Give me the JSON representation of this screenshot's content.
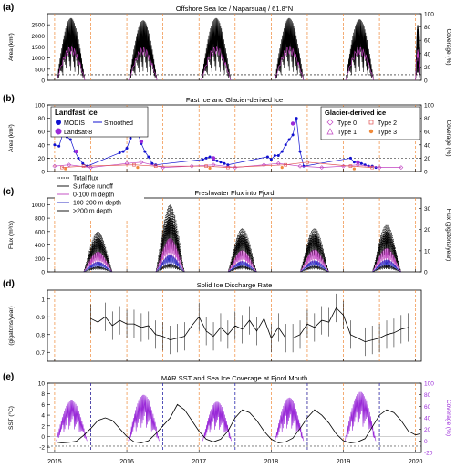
{
  "chart_data": [
    {
      "panel": "(a)",
      "title": "Offshore Sea Ice / Naparsuaq / 61.8°N",
      "type": "line",
      "ylabel": "Area (km²)",
      "y2label": "Coverage (%)",
      "ylim": [
        0,
        3000
      ],
      "y2lim": [
        0,
        100
      ],
      "yticks": [
        0,
        500,
        1000,
        1500,
        2000,
        2500
      ],
      "y2ticks": [
        0,
        20,
        40,
        60,
        80,
        100
      ],
      "reference_lines": [
        100,
        250
      ],
      "series": [
        {
          "name": "",
          "color": "#000000",
          "seasons": [
            [
              2015.03,
              2015.42,
              2800
            ],
            [
              2016.03,
              2016.42,
              2700
            ],
            [
              2017.03,
              2017.44,
              2800
            ],
            [
              2018.05,
              2018.45,
              2800
            ],
            [
              2019.03,
              2019.42,
              2750
            ],
            [
              2020.0,
              2020.06,
              2500
            ]
          ]
        }
      ]
    },
    {
      "panel": "(b)",
      "title": "Fast Ice and Glacier-derived Ice",
      "type": "scatter",
      "ylabel": "Area (km²)",
      "y2label": "Coverage (%)",
      "ylim": [
        0,
        100
      ],
      "y2lim": [
        0,
        100
      ],
      "yticks": [
        0,
        20,
        40,
        60,
        80,
        100
      ],
      "y2ticks": [
        0,
        20,
        40,
        60,
        80,
        100
      ],
      "legend_left_title": "Landfast ice",
      "legend_left": [
        "MODIS",
        "Landsat-8",
        "Smoothed"
      ],
      "legend_right_title": "Glacier-derived ice",
      "legend_right": [
        "Type 0",
        "Type 1",
        "Type 2",
        "Type 3"
      ],
      "series": [
        {
          "name": "MODIS",
          "color": "#1010d0",
          "x": [
            2015.0,
            2015.06,
            2015.11,
            2015.17,
            2015.22,
            2015.28,
            2015.33,
            2015.39,
            2015.45,
            2015.9,
            2015.95,
            2016.0,
            2016.05,
            2016.1,
            2016.15,
            2016.2,
            2016.25,
            2016.3,
            2016.35,
            2016.4,
            2017.05,
            2017.1,
            2017.15,
            2017.2,
            2017.25,
            2017.3,
            2017.35,
            2017.4,
            2017.95,
            2018.0,
            2018.05,
            2018.1,
            2018.15,
            2018.2,
            2018.25,
            2018.3,
            2018.35,
            2018.4,
            2018.45,
            2019.1,
            2019.15,
            2019.2,
            2019.25,
            2019.3,
            2019.35,
            2019.4,
            2019.45
          ],
          "values": [
            40,
            38,
            55,
            52,
            48,
            30,
            20,
            12,
            8,
            28,
            30,
            35,
            50,
            60,
            58,
            42,
            30,
            22,
            12,
            10,
            18,
            20,
            22,
            18,
            16,
            14,
            12,
            10,
            22,
            18,
            24,
            24,
            30,
            40,
            48,
            55,
            80,
            30,
            8,
            20,
            14,
            14,
            12,
            10,
            8,
            8,
            6
          ]
        },
        {
          "name": "Landsat-8",
          "color": "#9a2ad8",
          "x": [
            2015.1,
            2015.3,
            2016.05,
            2016.2,
            2017.2,
            2018.3,
            2019.2
          ],
          "values": [
            55,
            30,
            62,
            45,
            20,
            72,
            14
          ]
        },
        {
          "name": "Type 0",
          "color": "#c040c0",
          "x": [
            2015.0,
            2015.2,
            2015.5,
            2016.0,
            2016.2,
            2016.5,
            2016.9,
            2017.2,
            2017.5,
            2017.9,
            2018.1,
            2018.4,
            2018.7,
            2019.0,
            2019.2,
            2019.5,
            2019.8
          ],
          "values": [
            8,
            10,
            6,
            12,
            14,
            6,
            8,
            10,
            6,
            10,
            12,
            8,
            6,
            8,
            10,
            6,
            6
          ]
        },
        {
          "name": "Type 2",
          "color": "#e05050",
          "x": [
            2015.1,
            2015.4,
            2016.1,
            2016.4,
            2017.1,
            2017.4,
            2018.2,
            2018.5,
            2019.1,
            2019.4
          ],
          "values": [
            6,
            8,
            10,
            8,
            8,
            6,
            10,
            14,
            8,
            6
          ]
        },
        {
          "name": "Type 3",
          "color": "#f08a3a",
          "x": [
            2015.15,
            2016.15,
            2017.15,
            2018.15,
            2019.15
          ],
          "values": [
            4,
            6,
            5,
            6,
            4
          ]
        }
      ]
    },
    {
      "panel": "(c)",
      "title": "Freshwater Flux into Fjord",
      "type": "line",
      "ylabel": "Flux (m³/s)",
      "y2label": "Flux (gigatons/year)",
      "ylim": [
        0,
        1100
      ],
      "y2lim": [
        0,
        35
      ],
      "yticks": [
        0,
        200,
        400,
        600,
        800,
        1000
      ],
      "y2ticks": [
        0,
        10,
        20,
        30
      ],
      "legend": [
        "Total flux",
        "Surface runoff",
        "0-100 m depth",
        "100-200 m depth",
        ">200 m depth"
      ],
      "series": [
        {
          "name": "Total flux",
          "color": "#000000",
          "peaks": [
            600,
            1000,
            650,
            650,
            700
          ]
        },
        {
          "name": "Surface runoff",
          "color": "#000000",
          "peaks": [
            500,
            800,
            550,
            560,
            600
          ]
        },
        {
          "name": "0-100 m depth",
          "color": "#c040c0",
          "peaks": [
            300,
            500,
            320,
            330,
            350
          ]
        },
        {
          "name": "100-200 m depth",
          "color": "#2020c0",
          "peaks": [
            150,
            250,
            160,
            170,
            180
          ]
        },
        {
          "name": ">200 m depth",
          "color": "#000000",
          "peaks": [
            80,
            120,
            90,
            90,
            100
          ]
        }
      ],
      "seasons": [
        [
          2015.4,
          2015.8
        ],
        [
          2016.4,
          2016.8
        ],
        [
          2017.4,
          2017.8
        ],
        [
          2018.4,
          2018.8
        ],
        [
          2019.4,
          2019.8
        ]
      ]
    },
    {
      "panel": "(d)",
      "title": "Solid Ice Discharge Rate",
      "type": "line",
      "ylabel": "(gigatons/year)",
      "ylim": [
        0.65,
        1.05
      ],
      "yticks": [
        0.7,
        0.8,
        0.9,
        1.0
      ],
      "series": [
        {
          "name": "",
          "color": "#000000",
          "x": [
            2015.5,
            2015.6,
            2015.7,
            2015.8,
            2015.9,
            2016.0,
            2016.1,
            2016.2,
            2016.3,
            2016.4,
            2016.5,
            2016.6,
            2016.7,
            2016.8,
            2016.9,
            2017.0,
            2017.1,
            2017.2,
            2017.3,
            2017.4,
            2017.5,
            2017.6,
            2017.7,
            2017.8,
            2017.9,
            2018.0,
            2018.1,
            2018.2,
            2018.3,
            2018.4,
            2018.5,
            2018.6,
            2018.7,
            2018.8,
            2018.9,
            2019.0,
            2019.1,
            2019.2,
            2019.3,
            2019.4,
            2019.5,
            2019.6,
            2019.7,
            2019.8,
            2019.9
          ],
          "values": [
            0.89,
            0.87,
            0.9,
            0.85,
            0.88,
            0.86,
            0.86,
            0.84,
            0.85,
            0.8,
            0.79,
            0.77,
            0.78,
            0.79,
            0.85,
            0.9,
            0.82,
            0.79,
            0.84,
            0.8,
            0.85,
            0.83,
            0.88,
            0.82,
            0.89,
            0.78,
            0.84,
            0.78,
            0.78,
            0.8,
            0.86,
            0.84,
            0.88,
            0.87,
            0.95,
            0.91,
            0.8,
            0.78,
            0.76,
            0.77,
            0.78,
            0.8,
            0.81,
            0.83,
            0.84
          ],
          "error": 0.08
        }
      ]
    },
    {
      "panel": "(e)",
      "title": "MAR SST and Sea Ice Coverage at Fjord Mouth",
      "type": "line",
      "ylabel": "SST (°C)",
      "y2label": "Coverage (%)",
      "ylim": [
        -3,
        10
      ],
      "y2lim": [
        -20,
        100
      ],
      "yticks": [
        -2,
        0,
        2,
        4,
        6,
        8,
        10
      ],
      "y2ticks": [
        -20,
        0,
        20,
        40,
        60,
        80,
        100
      ],
      "series": [
        {
          "name": "",
          "color": "#000000",
          "x": [
            2015.0,
            2015.1,
            2015.2,
            2015.3,
            2015.4,
            2015.5,
            2015.6,
            2015.7,
            2015.8,
            2015.9,
            2016.0,
            2016.1,
            2016.2,
            2016.3,
            2016.4,
            2016.5,
            2016.6,
            2016.7,
            2016.8,
            2016.9,
            2017.0,
            2017.1,
            2017.2,
            2017.3,
            2017.4,
            2017.5,
            2017.6,
            2017.7,
            2017.8,
            2017.9,
            2018.0,
            2018.1,
            2018.2,
            2018.3,
            2018.4,
            2018.5,
            2018.6,
            2018.7,
            2018.8,
            2018.9,
            2019.0,
            2019.1,
            2019.2,
            2019.3,
            2019.4,
            2019.5,
            2019.6,
            2019.7,
            2019.8,
            2019.9,
            2020.0,
            2020.06
          ],
          "values": [
            -1.0,
            -1.2,
            -1.1,
            -0.9,
            0.2,
            1.5,
            3.0,
            3.5,
            3.0,
            1.5,
            0.0,
            -1.0,
            -1.2,
            -0.8,
            0.5,
            2.0,
            3.5,
            6.0,
            5.0,
            3.0,
            1.0,
            -0.5,
            -1.0,
            -0.5,
            1.0,
            3.5,
            5.0,
            4.5,
            3.0,
            1.0,
            -0.5,
            -1.2,
            -1.0,
            -0.3,
            1.5,
            3.5,
            5.0,
            4.0,
            2.5,
            0.5,
            -0.8,
            -1.2,
            -1.0,
            -0.4,
            1.8,
            4.0,
            5.0,
            4.5,
            3.0,
            1.0,
            0.3,
            0.5
          ]
        },
        {
          "name": "Coverage",
          "color": "#9a2ad8",
          "seasons": [
            [
              2015.02,
              2015.45,
              70
            ],
            [
              2016.02,
              2016.45,
              80
            ],
            [
              2017.05,
              2017.45,
              68
            ],
            [
              2018.05,
              2018.45,
              75
            ],
            [
              2019.02,
              2019.45,
              85
            ]
          ]
        }
      ]
    }
  ],
  "x_axis": {
    "ticks": [
      "2015",
      "2016",
      "2017",
      "2018",
      "2019",
      "2020"
    ],
    "xlim": [
      2014.9,
      2020.08
    ]
  },
  "vertical_markers": {
    "orange": [
      2015.0,
      2015.5,
      2016.0,
      2016.5,
      2017.0,
      2017.5,
      2018.0,
      2018.5,
      2019.0,
      2019.5,
      2020.0
    ],
    "blue_panel_e": [
      2015.5,
      2016.5,
      2017.5,
      2018.5,
      2019.5
    ]
  },
  "colors": {
    "orange": "#f08a3a",
    "purple": "#9a2ad8",
    "magenta": "#c040c0",
    "blue": "#1010d0"
  }
}
